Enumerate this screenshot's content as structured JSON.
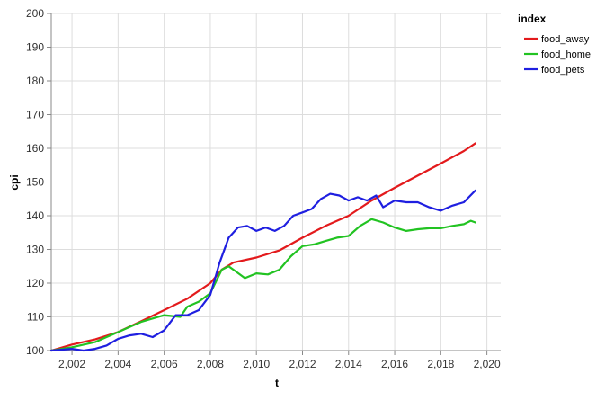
{
  "chart_data": {
    "type": "line",
    "xlabel": "t",
    "ylabel": "cpi",
    "xlim": [
      2001.1,
      2020.6
    ],
    "ylim": [
      100,
      200
    ],
    "xticks": [
      2002,
      2004,
      2006,
      2008,
      2010,
      2012,
      2014,
      2016,
      2018,
      2020
    ],
    "xtick_labels": [
      "2,002",
      "2,004",
      "2,006",
      "2,008",
      "2,010",
      "2,012",
      "2,014",
      "2,016",
      "2,018",
      "2,020"
    ],
    "yticks": [
      100,
      110,
      120,
      130,
      140,
      150,
      160,
      170,
      180,
      190,
      200
    ],
    "ytick_labels": [
      "100",
      "110",
      "120",
      "130",
      "140",
      "150",
      "160",
      "170",
      "180",
      "190",
      "200"
    ],
    "grid": true,
    "legend": {
      "title": "index",
      "position": "right"
    },
    "series": [
      {
        "name": "food_away",
        "color": "#e31a1c",
        "x": [
          2001.1,
          2002.0,
          2003.0,
          2004.0,
          2005.0,
          2006.0,
          2007.0,
          2008.0,
          2008.5,
          2009.0,
          2010.0,
          2011.0,
          2012.0,
          2013.0,
          2014.0,
          2015.0,
          2016.0,
          2017.0,
          2018.0,
          2019.0,
          2019.5
        ],
        "y": [
          100.0,
          101.8,
          103.3,
          105.5,
          108.7,
          112.0,
          115.4,
          120.0,
          124.0,
          126.1,
          127.6,
          129.7,
          133.5,
          137.0,
          140.0,
          144.5,
          148.3,
          151.9,
          155.5,
          159.2,
          161.5
        ]
      },
      {
        "name": "food_home",
        "color": "#22c322",
        "x": [
          2001.1,
          2002.0,
          2003.0,
          2003.5,
          2004.0,
          2005.0,
          2006.0,
          2006.7,
          2007.0,
          2007.5,
          2008.0,
          2008.5,
          2008.8,
          2009.0,
          2009.5,
          2010.0,
          2010.5,
          2011.0,
          2011.5,
          2012.0,
          2012.5,
          2013.0,
          2013.5,
          2014.0,
          2014.5,
          2015.0,
          2015.5,
          2016.0,
          2016.5,
          2017.0,
          2017.5,
          2018.0,
          2018.5,
          2019.0,
          2019.3,
          2019.5
        ],
        "y": [
          100.0,
          101.0,
          102.5,
          104.0,
          105.5,
          108.5,
          110.5,
          110.0,
          113.0,
          114.5,
          117.0,
          124.0,
          125.0,
          124.0,
          121.5,
          122.9,
          122.6,
          124.0,
          128.0,
          131.0,
          131.5,
          132.5,
          133.5,
          134.0,
          137.0,
          139.0,
          138.0,
          136.5,
          135.5,
          136.0,
          136.3,
          136.3,
          137.0,
          137.5,
          138.5,
          138.0
        ]
      },
      {
        "name": "food_pets",
        "color": "#1f1fe0",
        "x": [
          2001.1,
          2002.0,
          2002.5,
          2003.0,
          2003.5,
          2004.0,
          2004.5,
          2005.0,
          2005.5,
          2006.0,
          2006.5,
          2007.0,
          2007.5,
          2008.0,
          2008.4,
          2008.8,
          2009.2,
          2009.6,
          2010.0,
          2010.4,
          2010.8,
          2011.2,
          2011.6,
          2012.0,
          2012.4,
          2012.8,
          2013.2,
          2013.6,
          2014.0,
          2014.4,
          2014.8,
          2015.2,
          2015.5,
          2016.0,
          2016.5,
          2017.0,
          2017.5,
          2018.0,
          2018.5,
          2019.0,
          2019.5
        ],
        "y": [
          100.0,
          100.5,
          100.0,
          100.5,
          101.5,
          103.5,
          104.5,
          105.0,
          104.0,
          106.0,
          110.5,
          110.5,
          112.0,
          116.5,
          126.0,
          133.5,
          136.5,
          137.0,
          135.5,
          136.5,
          135.5,
          137.0,
          140.0,
          141.0,
          142.0,
          145.0,
          146.5,
          146.0,
          144.5,
          145.5,
          144.5,
          146.0,
          142.5,
          144.5,
          144.0,
          144.0,
          142.5,
          141.5,
          143.0,
          144.0,
          147.5
        ]
      }
    ]
  }
}
